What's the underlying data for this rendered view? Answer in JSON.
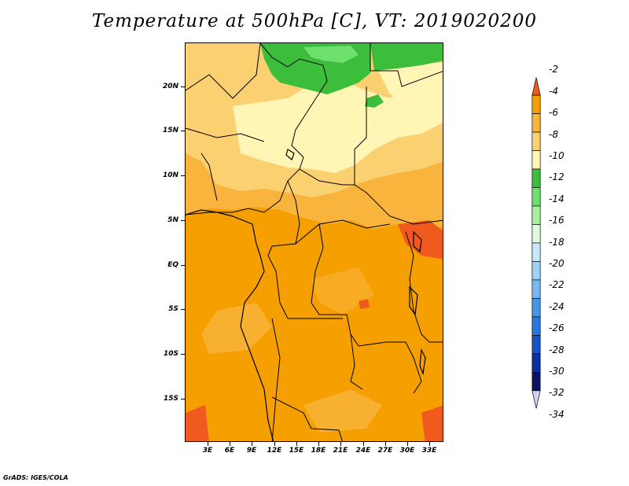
{
  "title": "Temperature at 500hPa [C], VT: 2019020200",
  "credit": "GrADS: IGES/COLA",
  "lat_labels": [
    "20N",
    "15N",
    "10N",
    "5N",
    "EQ",
    "5S",
    "10S",
    "15S"
  ],
  "lon_labels": [
    "3E",
    "6E",
    "9E",
    "12E",
    "15E",
    "18E",
    "21E",
    "24E",
    "27E",
    "30E",
    "33E"
  ],
  "colorbar": {
    "labels": [
      "-2",
      "-4",
      "-6",
      "-8",
      "-10",
      "-12",
      "-14",
      "-16",
      "-18",
      "-20",
      "-22",
      "-24",
      "-26",
      "-28",
      "-30",
      "-32",
      "-34"
    ],
    "colors": [
      "#f05a1e",
      "#f5a000",
      "#f8b43c",
      "#fbd070",
      "#fff5b4",
      "#3cbe3c",
      "#6ee06e",
      "#a8f0a0",
      "#e0fae0",
      "#c8e8fa",
      "#a0d2f8",
      "#78b8f0",
      "#4696e6",
      "#2878dc",
      "#1455c8",
      "#0a32a0",
      "#0a1464",
      "#d2d2f5"
    ]
  },
  "map_colors": {
    "darkest_orange": "#f05a1e",
    "orange": "#f5a000",
    "light_orange": "#f8b43c",
    "tan": "#fbd070",
    "cream": "#fff5b4",
    "green": "#3cbe3c",
    "light_green": "#6ee06e"
  }
}
